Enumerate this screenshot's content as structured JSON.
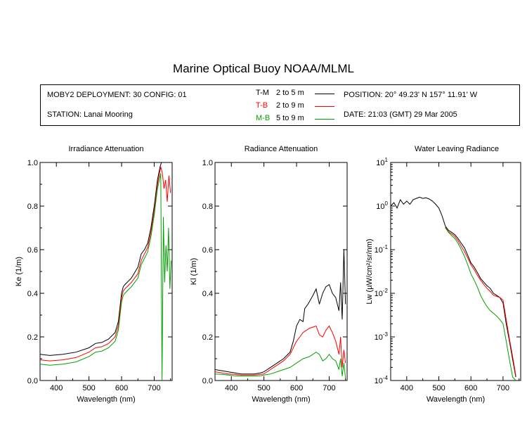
{
  "title": "Marine Optical Buoy NOAA/MLML",
  "info": {
    "deployment": "MOBY2 DEPLOYMENT: 30 CONFIG: 01",
    "station": "STATION: Lanai Mooring",
    "position": "POSITION: 20° 49.23' N   157° 11.91' W",
    "date": "DATE: 21:03 (GMT) 29 Mar 2005",
    "legend": [
      {
        "code": "T-M",
        "range": "2 to 5  m",
        "color": "#000000"
      },
      {
        "code": "T-B",
        "range": "2 to 9  m",
        "color": "#ff0000"
      },
      {
        "code": "M-B",
        "range": "5 to 9  m",
        "color": "#00a000"
      }
    ]
  },
  "chart_data": [
    {
      "type": "line",
      "title": "Irradiance Attenuation",
      "xlabel": "Wavelength (nm)",
      "ylabel": "Ke  (1/m)",
      "xlim": [
        350,
        755
      ],
      "ylim": [
        0,
        1.0
      ],
      "xticks": [
        400,
        500,
        600,
        700
      ],
      "yticks": [
        "0.0",
        "0.2",
        "0.4",
        "0.6",
        "0.8",
        "1.0"
      ],
      "series": [
        {
          "name": "T-M",
          "color": "#000000",
          "x": [
            350,
            380,
            420,
            460,
            500,
            520,
            540,
            560,
            580,
            590,
            600,
            605,
            610,
            630,
            650,
            660,
            670,
            680,
            690,
            700,
            710,
            718,
            722
          ],
          "y": [
            0.12,
            0.115,
            0.12,
            0.13,
            0.15,
            0.17,
            0.175,
            0.19,
            0.22,
            0.27,
            0.4,
            0.43,
            0.44,
            0.47,
            0.52,
            0.58,
            0.6,
            0.63,
            0.7,
            0.8,
            0.92,
            0.98,
            1.0
          ]
        },
        {
          "name": "T-B",
          "color": "#ff0000",
          "x": [
            350,
            380,
            420,
            460,
            500,
            520,
            540,
            560,
            580,
            590,
            600,
            605,
            610,
            630,
            650,
            660,
            670,
            680,
            690,
            700,
            710,
            720,
            725,
            730,
            735,
            740,
            745,
            750
          ],
          "y": [
            0.095,
            0.09,
            0.095,
            0.105,
            0.13,
            0.15,
            0.155,
            0.17,
            0.2,
            0.25,
            0.38,
            0.41,
            0.42,
            0.45,
            0.49,
            0.55,
            0.58,
            0.61,
            0.68,
            0.78,
            0.9,
            0.98,
            0.95,
            0.88,
            0.92,
            0.82,
            0.94,
            0.86
          ]
        },
        {
          "name": "M-B",
          "color": "#00a000",
          "x": [
            350,
            380,
            420,
            460,
            500,
            520,
            540,
            560,
            580,
            590,
            600,
            605,
            610,
            630,
            650,
            660,
            670,
            680,
            690,
            700,
            710,
            720,
            724,
            728,
            732,
            736,
            740,
            744,
            748,
            752
          ],
          "y": [
            0.075,
            0.07,
            0.075,
            0.085,
            0.11,
            0.13,
            0.135,
            0.15,
            0.18,
            0.23,
            0.36,
            0.39,
            0.4,
            0.43,
            0.47,
            0.53,
            0.56,
            0.59,
            0.66,
            0.76,
            0.88,
            0.95,
            0.0,
            0.75,
            0.45,
            0.62,
            0.5,
            0.7,
            0.42,
            0.55
          ]
        }
      ]
    },
    {
      "type": "line",
      "title": "Radiance Attenuation",
      "xlabel": "Wavelength (nm)",
      "ylabel": "Kl  (1/m)",
      "xlim": [
        350,
        755
      ],
      "ylim": [
        0,
        1.0
      ],
      "xticks": [
        400,
        500,
        600,
        700
      ],
      "yticks": [
        "0.0",
        "0.2",
        "0.4",
        "0.6",
        "0.8",
        "1.0"
      ],
      "series": [
        {
          "name": "T-M",
          "color": "#000000",
          "x": [
            350,
            370,
            390,
            410,
            430,
            450,
            470,
            490,
            500,
            520,
            540,
            560,
            580,
            590,
            600,
            610,
            620,
            625,
            635,
            650,
            660,
            670,
            680,
            690,
            700,
            710,
            720,
            730,
            735,
            740,
            745,
            750
          ],
          "y": [
            0.05,
            0.045,
            0.04,
            0.035,
            0.03,
            0.03,
            0.03,
            0.035,
            0.04,
            0.06,
            0.08,
            0.1,
            0.13,
            0.18,
            0.25,
            0.28,
            0.27,
            0.33,
            0.35,
            0.39,
            0.42,
            0.35,
            0.4,
            0.43,
            0.44,
            0.4,
            0.38,
            0.32,
            0.45,
            0.28,
            0.6,
            0.35
          ]
        },
        {
          "name": "T-B",
          "color": "#ff0000",
          "x": [
            350,
            370,
            390,
            410,
            430,
            450,
            470,
            490,
            500,
            520,
            540,
            560,
            580,
            590,
            600,
            610,
            620,
            640,
            660,
            670,
            680,
            690,
            700,
            710,
            720,
            730,
            735,
            740,
            745,
            750
          ],
          "y": [
            0.04,
            0.035,
            0.03,
            0.028,
            0.025,
            0.025,
            0.025,
            0.028,
            0.03,
            0.05,
            0.07,
            0.09,
            0.12,
            0.15,
            0.18,
            0.2,
            0.22,
            0.24,
            0.25,
            0.21,
            0.2,
            0.23,
            0.25,
            0.22,
            0.18,
            0.12,
            0.2,
            0.06,
            0.14,
            0.08
          ]
        },
        {
          "name": "M-B",
          "color": "#00a000",
          "x": [
            350,
            370,
            390,
            410,
            430,
            450,
            470,
            490,
            500,
            520,
            540,
            560,
            580,
            600,
            620,
            640,
            660,
            670,
            680,
            690,
            700,
            710,
            720,
            730,
            735,
            740,
            745,
            750
          ],
          "y": [
            0.03,
            0.028,
            0.025,
            0.022,
            0.02,
            0.02,
            0.02,
            0.022,
            0.025,
            0.03,
            0.04,
            0.05,
            0.06,
            0.08,
            0.1,
            0.11,
            0.13,
            0.12,
            0.09,
            0.1,
            0.12,
            0.1,
            0.09,
            0.05,
            0.1,
            0.02,
            0.08,
            0.01
          ]
        }
      ]
    },
    {
      "type": "line",
      "title": "Water Leaving Radiance",
      "xlabel": "Wavelength (nm)",
      "ylabel": "Lw  (µW/cm²/sr/nm)",
      "scale": "log",
      "xlim": [
        350,
        755
      ],
      "ylim": [
        0.0001,
        10
      ],
      "xticks": [
        400,
        500,
        600,
        700
      ],
      "yticks": [
        0.0001,
        0.001,
        0.01,
        0.1,
        1,
        10
      ],
      "series": [
        {
          "name": "T-M",
          "color": "#000000",
          "x": [
            350,
            360,
            370,
            380,
            390,
            400,
            410,
            420,
            430,
            440,
            450,
            460,
            470,
            480,
            490,
            500,
            510,
            520,
            530,
            540,
            550,
            560,
            570,
            580,
            590,
            600,
            610,
            620,
            630,
            640,
            650,
            660,
            670,
            680,
            690,
            700,
            710,
            720,
            730,
            740
          ],
          "y": [
            1.0,
            1.2,
            0.9,
            1.4,
            1.1,
            1.3,
            1.1,
            1.4,
            1.5,
            1.6,
            1.5,
            1.55,
            1.45,
            1.3,
            1.1,
            0.9,
            0.6,
            0.35,
            0.28,
            0.25,
            0.22,
            0.18,
            0.14,
            0.11,
            0.075,
            0.05,
            0.04,
            0.03,
            0.022,
            0.018,
            0.015,
            0.013,
            0.01,
            0.009,
            0.008,
            0.006,
            0.002,
            0.0008,
            0.0003,
            0.00012
          ]
        },
        {
          "name": "T-B",
          "color": "#ff0000",
          "x": [
            520,
            530,
            540,
            550,
            560,
            570,
            580,
            590,
            600,
            610,
            620,
            630,
            640,
            650,
            660,
            670,
            680,
            690,
            700,
            710,
            720,
            730,
            740
          ],
          "y": [
            0.33,
            0.26,
            0.23,
            0.2,
            0.16,
            0.12,
            0.09,
            0.065,
            0.045,
            0.035,
            0.026,
            0.02,
            0.016,
            0.013,
            0.011,
            0.009,
            0.0085,
            0.008,
            0.007,
            0.0025,
            0.0009,
            0.00035,
            0.00013
          ]
        },
        {
          "name": "M-B",
          "color": "#00a000",
          "x": [
            520,
            530,
            540,
            550,
            560,
            570,
            580,
            590,
            600,
            610,
            620,
            630,
            640,
            650,
            660,
            670,
            680,
            690,
            700,
            710,
            720,
            730,
            740
          ],
          "y": [
            0.32,
            0.25,
            0.21,
            0.18,
            0.14,
            0.1,
            0.07,
            0.045,
            0.028,
            0.02,
            0.014,
            0.009,
            0.0065,
            0.005,
            0.004,
            0.0035,
            0.003,
            0.0025,
            0.002,
            0.0008,
            0.0003,
            0.00012,
            0.0001
          ]
        }
      ]
    }
  ]
}
